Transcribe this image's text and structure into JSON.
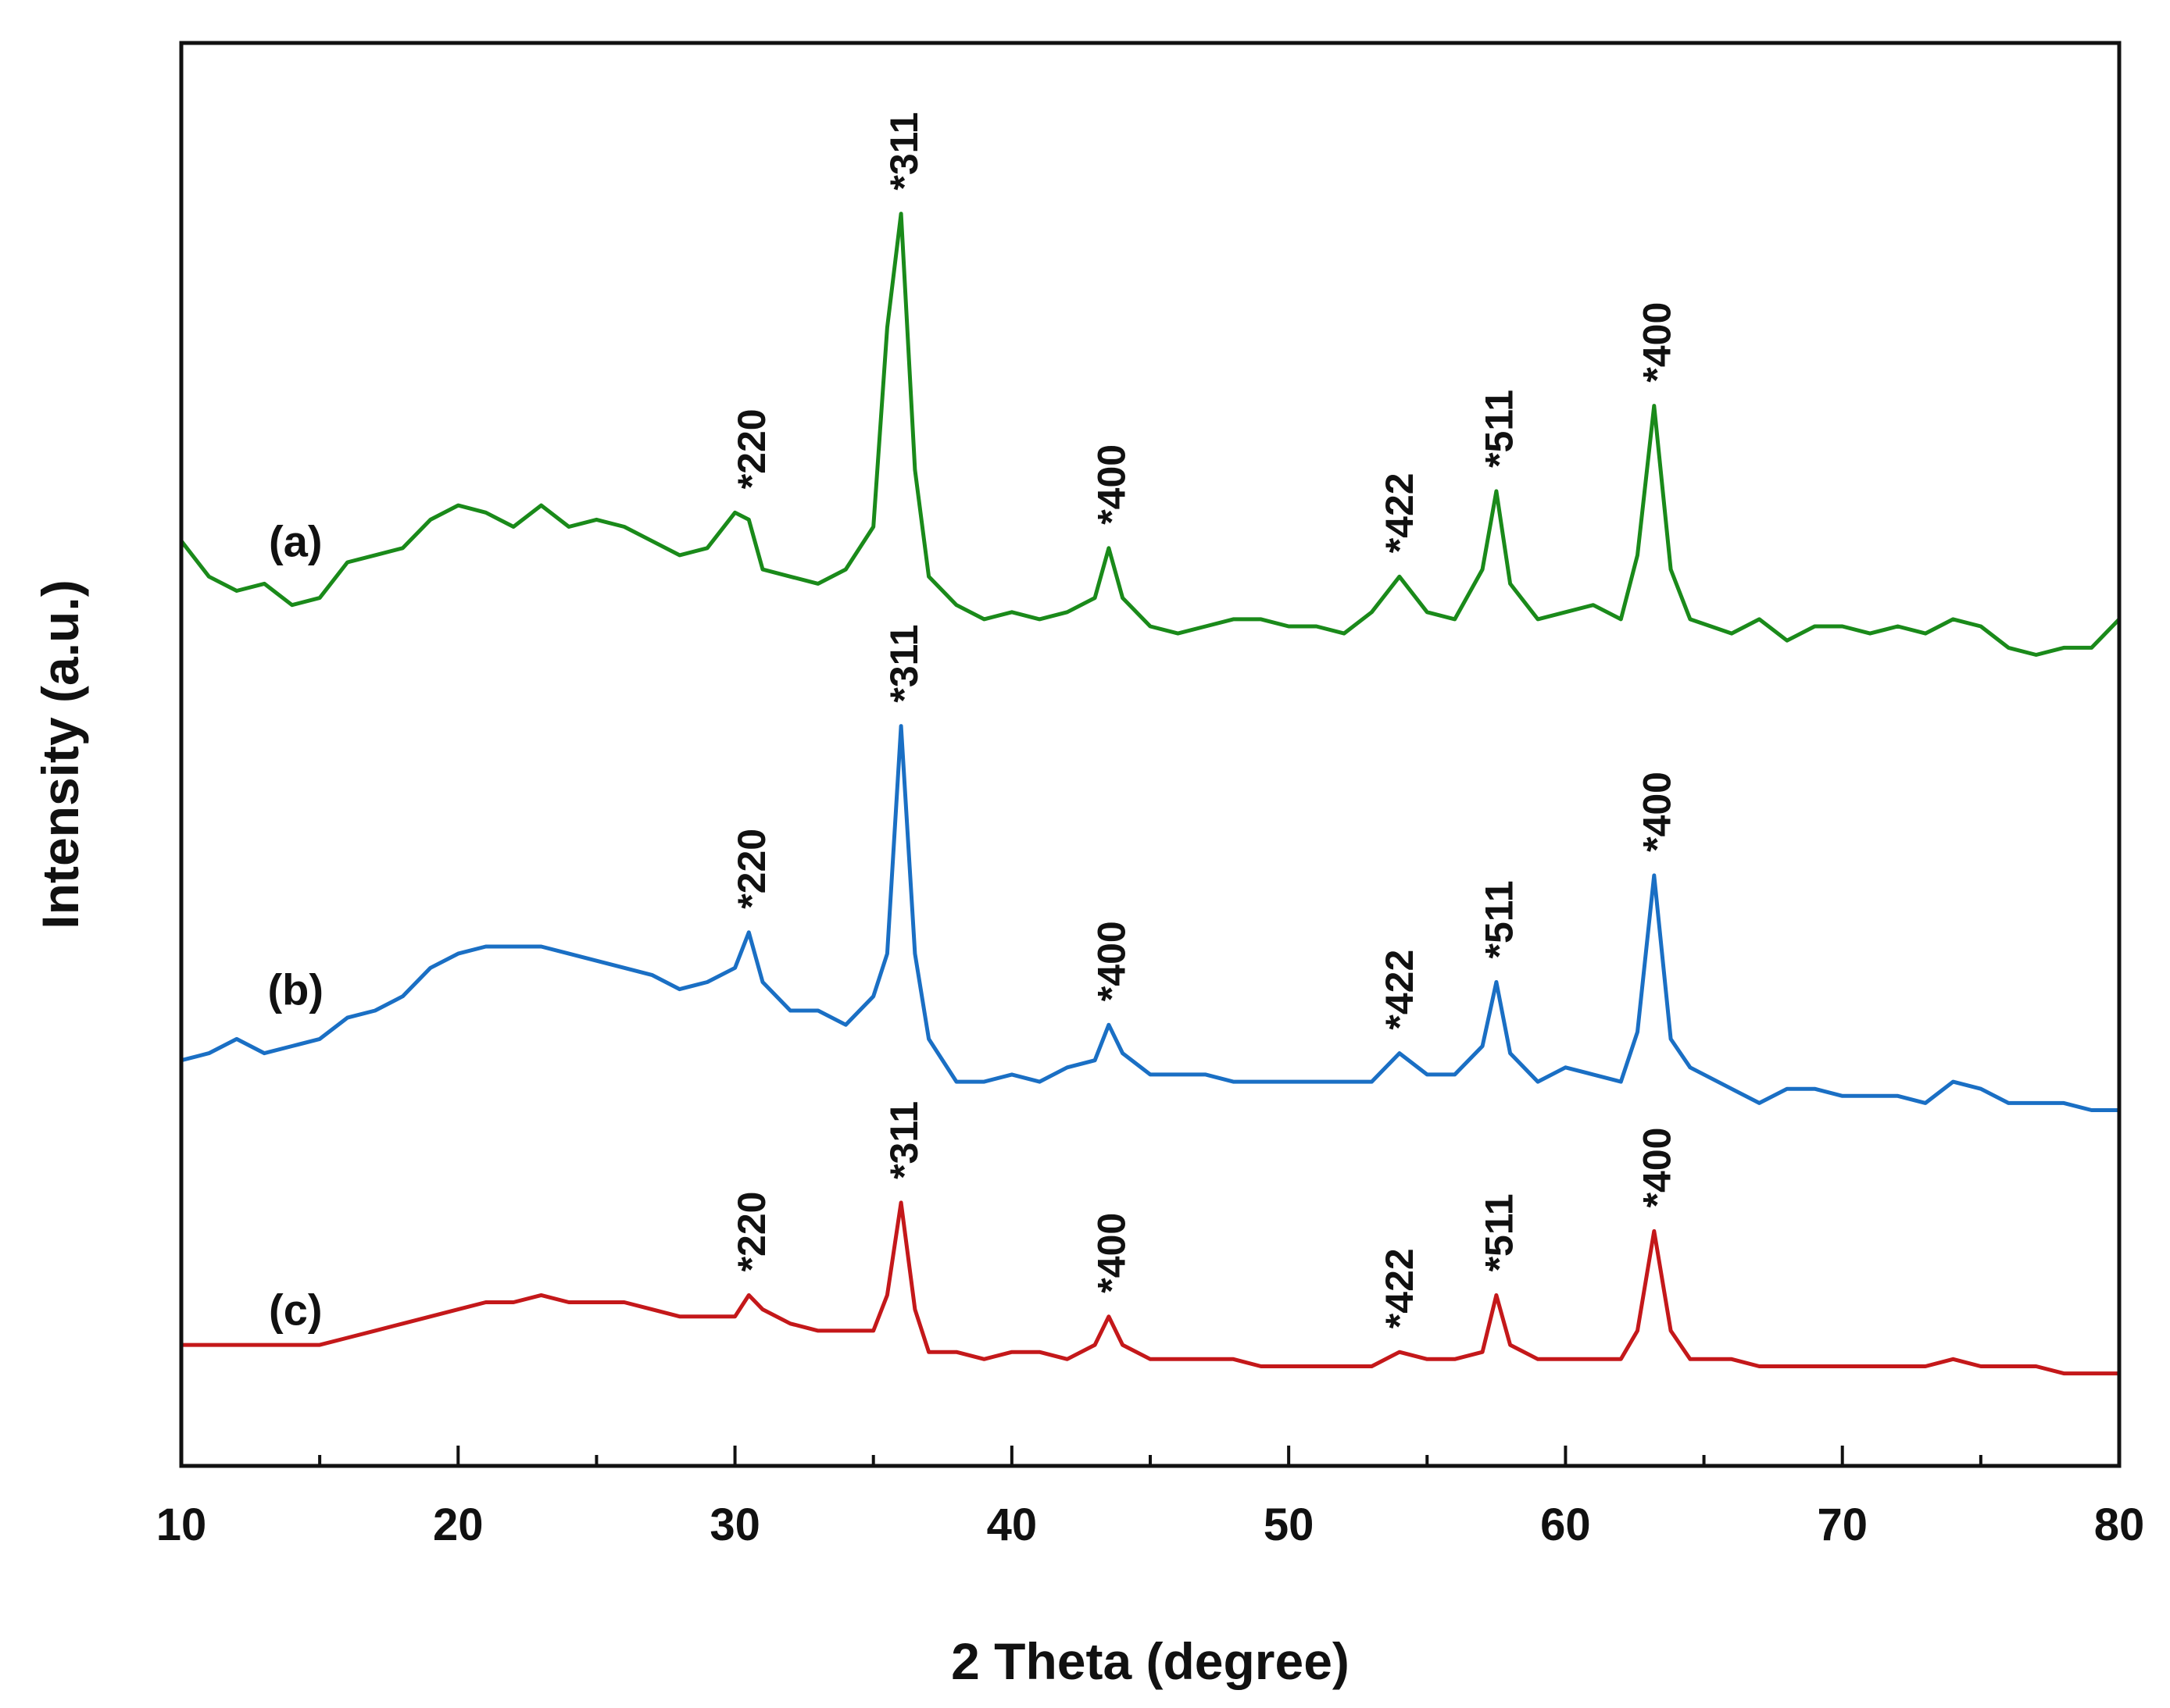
{
  "chart_data": {
    "type": "line",
    "title": "",
    "xlabel": "2 Theta (degree)",
    "ylabel": "Intensity (a.u.)",
    "xlim": [
      10,
      80
    ],
    "ylim": [
      0,
      100
    ],
    "xticks": [
      "10",
      "20",
      "30",
      "40",
      "50",
      "60",
      "70",
      "80"
    ],
    "grid": false,
    "legend": "none",
    "series": [
      {
        "name": "(a)",
        "color": "#1a8a1a",
        "x": [
          10,
          11,
          12,
          13,
          14,
          15,
          16,
          17,
          18,
          19,
          20,
          21,
          22,
          23,
          24,
          25,
          26,
          27,
          28,
          29,
          30,
          30.5,
          31,
          32,
          33,
          34,
          35,
          35.5,
          36,
          36.5,
          37,
          38,
          39,
          40,
          41,
          42,
          43,
          43.5,
          44,
          45,
          46,
          47,
          48,
          49,
          50,
          51,
          52,
          53,
          54,
          55,
          56,
          57,
          57.5,
          58,
          59,
          60,
          61,
          62,
          62.6,
          63.2,
          63.8,
          64.5,
          66,
          67,
          68,
          69,
          70,
          71,
          72,
          73,
          74,
          75,
          76,
          77,
          78,
          79,
          80
        ],
        "y": [
          65,
          62.5,
          61.5,
          62,
          60.5,
          61,
          63.5,
          64,
          64.5,
          66.5,
          67.5,
          67,
          66,
          67.5,
          66,
          66.5,
          66,
          65,
          64,
          64.5,
          67,
          66.5,
          63,
          62.5,
          62,
          63,
          66,
          80,
          88,
          70,
          62.5,
          60.5,
          59.5,
          60,
          59.5,
          60,
          61,
          64.5,
          61,
          59,
          58.5,
          59,
          59.5,
          59.5,
          59,
          59,
          58.5,
          60,
          62.5,
          60,
          59.5,
          63,
          68.5,
          62,
          59.5,
          60,
          60.5,
          59.5,
          64,
          74.5,
          63,
          59.5,
          58.5,
          59.5,
          58,
          59,
          59,
          58.5,
          59,
          58.5,
          59.5,
          59,
          57.5,
          57,
          57.5,
          57.5,
          59.5
        ]
      },
      {
        "name": "(b)",
        "color": "#1a6fc4",
        "x": [
          10,
          11,
          12,
          13,
          14,
          15,
          16,
          17,
          18,
          19,
          20,
          21,
          22,
          23,
          24,
          25,
          26,
          27,
          28,
          29,
          30,
          30.5,
          31,
          32,
          33,
          34,
          35,
          35.5,
          36,
          36.5,
          37,
          38,
          39,
          40,
          41,
          42,
          43,
          43.5,
          44,
          45,
          46,
          47,
          48,
          49,
          50,
          51,
          52,
          53,
          54,
          55,
          56,
          57,
          57.5,
          58,
          59,
          60,
          61,
          62,
          62.6,
          63.2,
          63.8,
          64.5,
          66,
          67,
          68,
          69,
          70,
          71,
          72,
          73,
          74,
          75,
          76,
          77,
          78,
          79,
          80
        ],
        "y": [
          28.5,
          29,
          30,
          29,
          29.5,
          30,
          31.5,
          32,
          33,
          35,
          36,
          36.5,
          36.5,
          36.5,
          36,
          35.5,
          35,
          34.5,
          33.5,
          34,
          35,
          37.5,
          34,
          32,
          32,
          31,
          33,
          36,
          52,
          36,
          30,
          27,
          27,
          27.5,
          27,
          28,
          28.5,
          31,
          29,
          27.5,
          27.5,
          27.5,
          27,
          27,
          27,
          27,
          27,
          27,
          29,
          27.5,
          27.5,
          29.5,
          34,
          29,
          27,
          28,
          27.5,
          27,
          30.5,
          41.5,
          30,
          28,
          26.5,
          25.5,
          26.5,
          26.5,
          26,
          26,
          26,
          25.5,
          27,
          26.5,
          25.5,
          25.5,
          25.5,
          25,
          25
        ]
      },
      {
        "name": "(c)",
        "color": "#c4181a",
        "x": [
          10,
          11,
          12,
          13,
          14,
          15,
          16,
          17,
          18,
          19,
          20,
          21,
          22,
          23,
          24,
          25,
          26,
          27,
          28,
          29,
          30,
          30.5,
          31,
          32,
          33,
          34,
          35,
          35.5,
          36,
          36.5,
          37,
          38,
          39,
          40,
          41,
          42,
          43,
          43.5,
          44,
          45,
          46,
          47,
          48,
          49,
          50,
          51,
          52,
          53,
          54,
          55,
          56,
          57,
          57.5,
          58,
          59,
          60,
          61,
          62,
          62.6,
          63.2,
          63.8,
          64.5,
          66,
          67,
          68,
          69,
          70,
          71,
          72,
          73,
          74,
          75,
          76,
          77,
          78,
          79,
          80
        ],
        "y": [
          8.5,
          8.5,
          8.5,
          8.5,
          8.5,
          8.5,
          9,
          9.5,
          10,
          10.5,
          11,
          11.5,
          11.5,
          12,
          11.5,
          11.5,
          11.5,
          11,
          10.5,
          10.5,
          10.5,
          12,
          11,
          10,
          9.5,
          9.5,
          9.5,
          12,
          18.5,
          11,
          8,
          8,
          7.5,
          8,
          8,
          7.5,
          8.5,
          10.5,
          8.5,
          7.5,
          7.5,
          7.5,
          7.5,
          7,
          7,
          7,
          7,
          7,
          8,
          7.5,
          7.5,
          8,
          12,
          8.5,
          7.5,
          7.5,
          7.5,
          7.5,
          9.5,
          16.5,
          9.5,
          7.5,
          7.5,
          7,
          7,
          7,
          7,
          7,
          7,
          7,
          7.5,
          7,
          7,
          7,
          6.5,
          6.5,
          6.5
        ]
      }
    ],
    "series_labels": [
      {
        "text": "(a)",
        "series": 0,
        "x": 13,
        "y": 65
      },
      {
        "text": "(b)",
        "series": 1,
        "x": 13,
        "y": 33.5
      },
      {
        "text": "(c)",
        "series": 2,
        "x": 13,
        "y": 11
      }
    ],
    "peak_annotations": [
      {
        "text": "*220",
        "series": 0,
        "x": 30.8,
        "y": 67
      },
      {
        "text": "*311",
        "series": 0,
        "x": 36.3,
        "y": 88
      },
      {
        "text": "*400",
        "series": 0,
        "x": 43.8,
        "y": 64.5
      },
      {
        "text": "*422",
        "series": 0,
        "x": 54.2,
        "y": 62.5
      },
      {
        "text": "*511",
        "series": 0,
        "x": 57.8,
        "y": 68.5
      },
      {
        "text": "*400",
        "series": 0,
        "x": 63.5,
        "y": 74.5
      },
      {
        "text": "*220",
        "series": 1,
        "x": 30.8,
        "y": 37.5
      },
      {
        "text": "*311",
        "series": 1,
        "x": 36.3,
        "y": 52
      },
      {
        "text": "*400",
        "series": 1,
        "x": 43.8,
        "y": 31
      },
      {
        "text": "*422",
        "series": 1,
        "x": 54.2,
        "y": 29
      },
      {
        "text": "*511",
        "series": 1,
        "x": 57.8,
        "y": 34
      },
      {
        "text": "*400",
        "series": 1,
        "x": 63.5,
        "y": 41.5
      },
      {
        "text": "*220",
        "series": 2,
        "x": 30.8,
        "y": 12
      },
      {
        "text": "*311",
        "series": 2,
        "x": 36.3,
        "y": 18.5
      },
      {
        "text": "*400",
        "series": 2,
        "x": 43.8,
        "y": 10.5
      },
      {
        "text": "*422",
        "series": 2,
        "x": 54.2,
        "y": 8
      },
      {
        "text": "*511",
        "series": 2,
        "x": 57.8,
        "y": 12
      },
      {
        "text": "*400",
        "series": 2,
        "x": 63.5,
        "y": 16.5
      }
    ]
  }
}
